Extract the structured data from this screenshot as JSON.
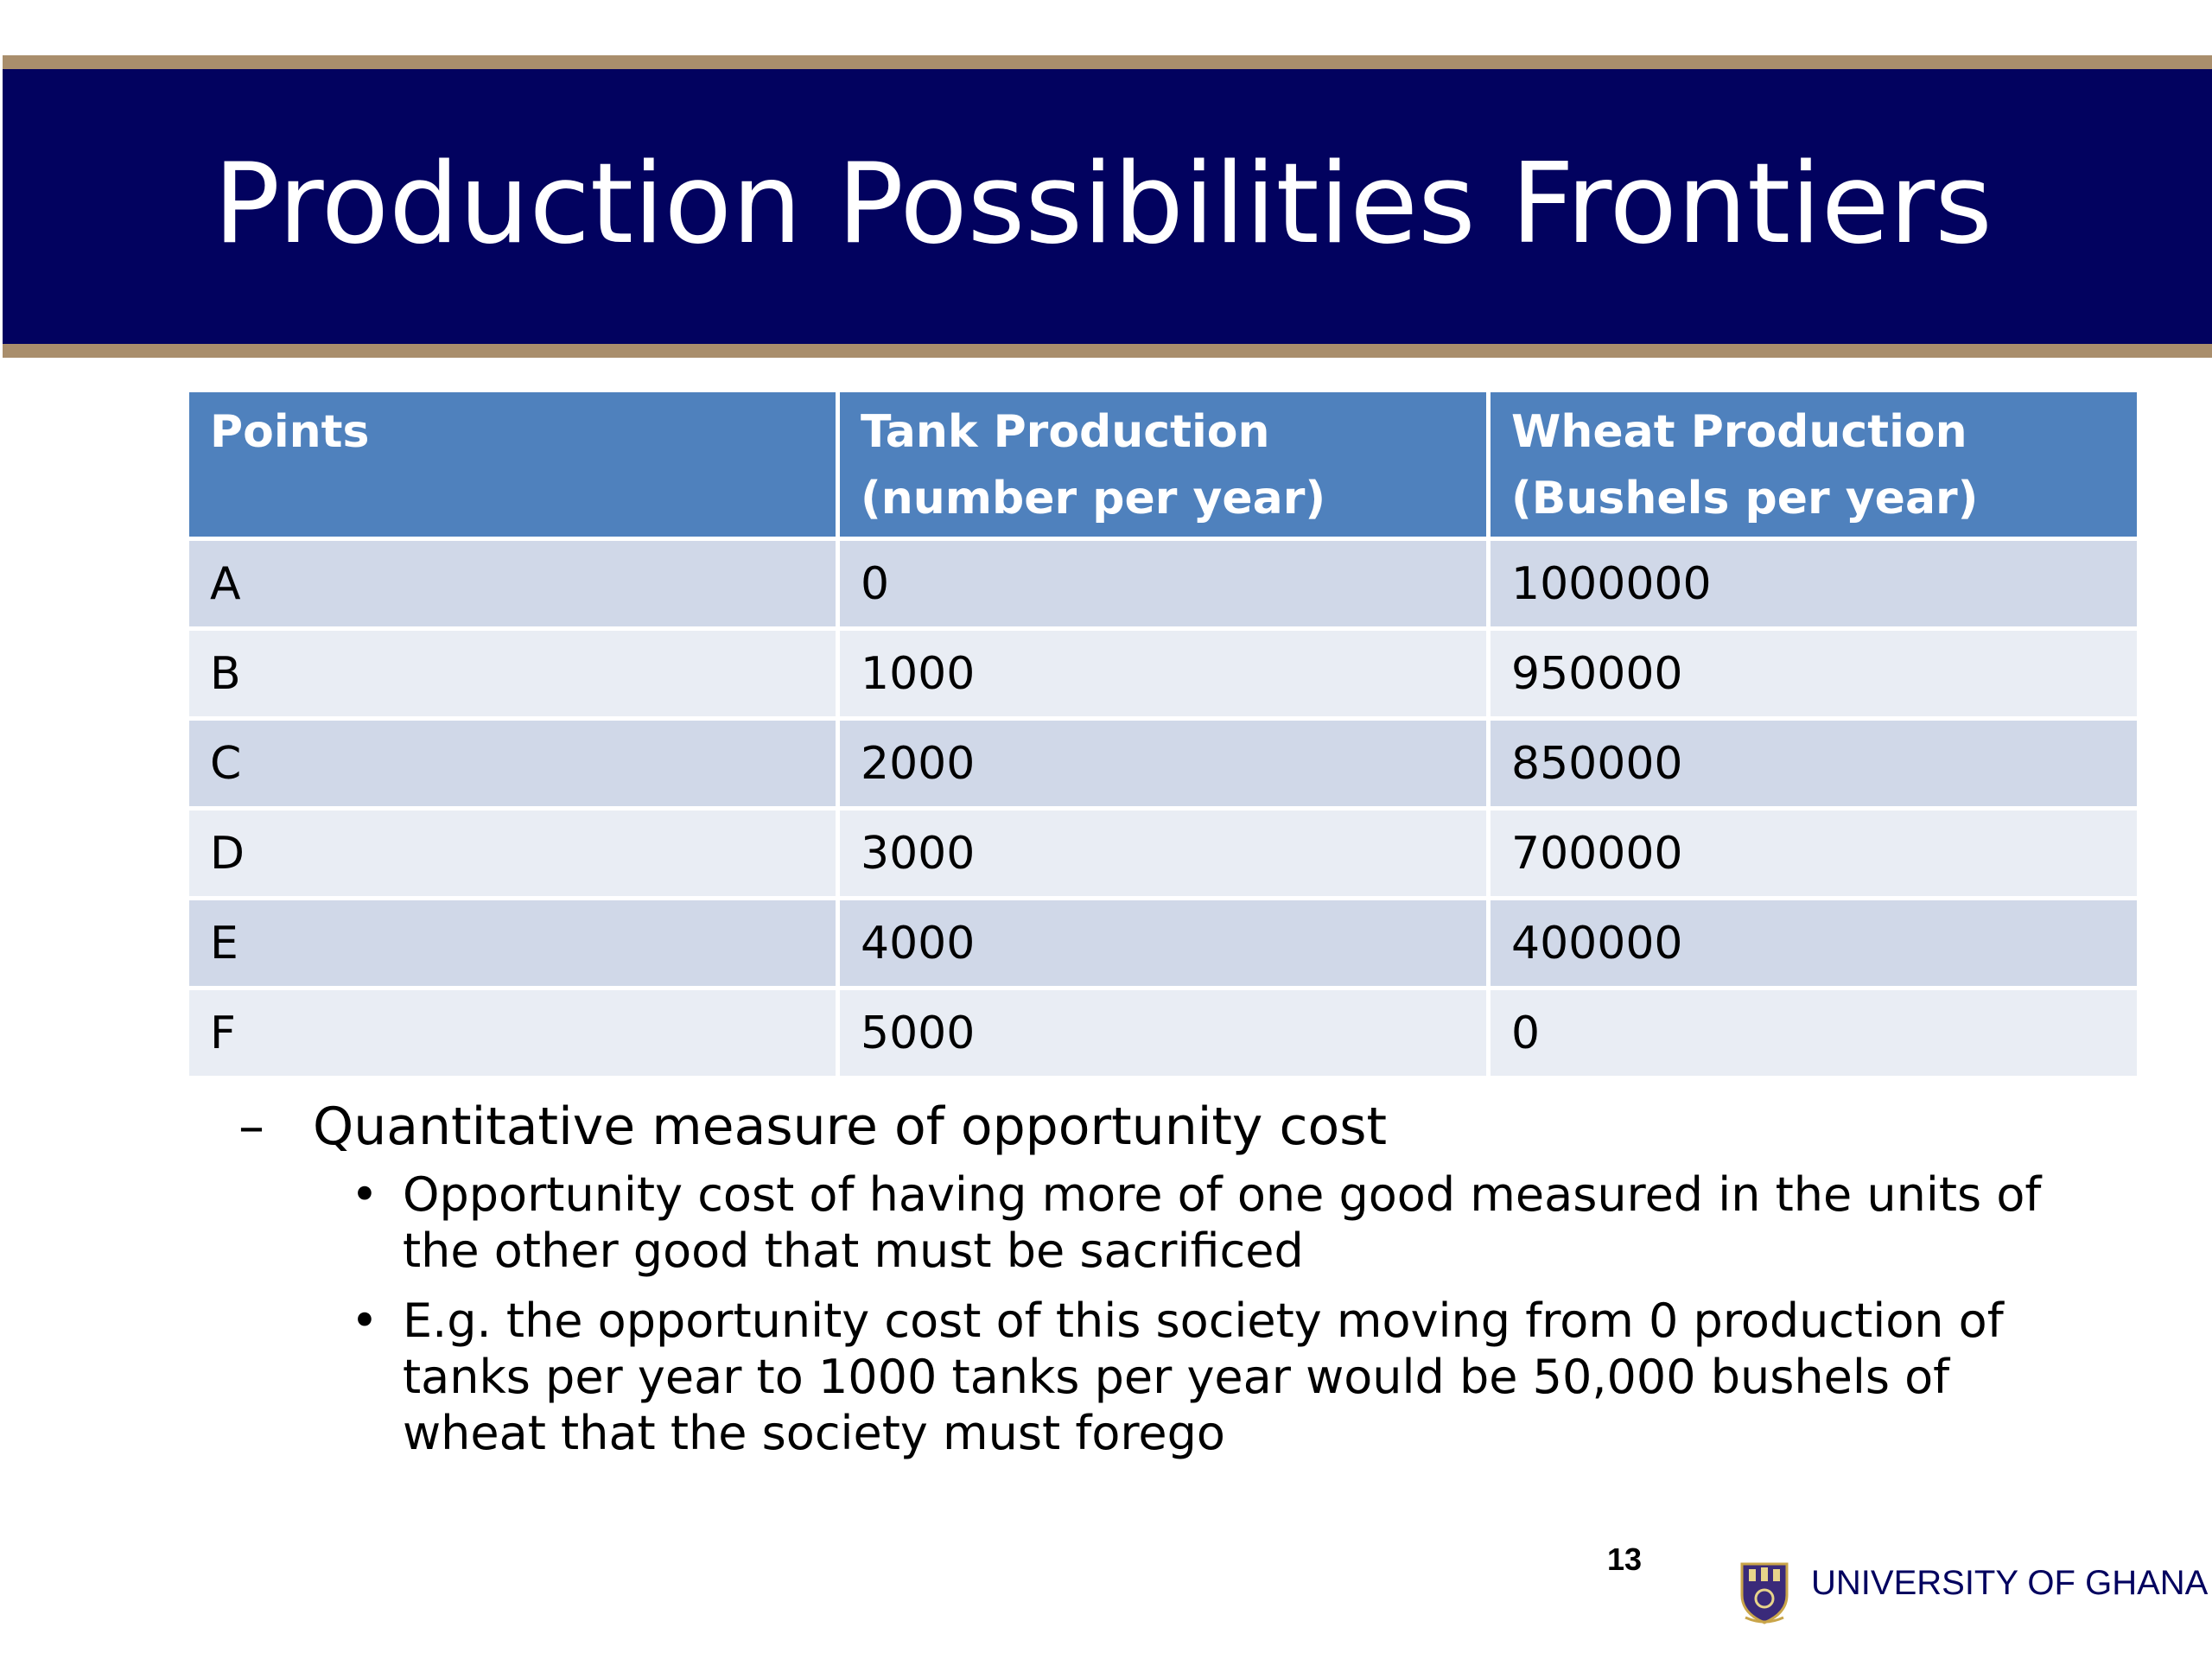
{
  "slide": {
    "title": "Production Possibilities Frontiers",
    "page_number": "13",
    "institution": "UNIVERSITY OF GHANA"
  },
  "table": {
    "headers": [
      "Points",
      "Tank Production (number per year)",
      "Wheat Production (Bushels per year)"
    ],
    "rows": [
      [
        "A",
        "0",
        "1000000"
      ],
      [
        "B",
        "1000",
        "950000"
      ],
      [
        "C",
        "2000",
        "850000"
      ],
      [
        "D",
        "3000",
        "700000"
      ],
      [
        "E",
        "4000",
        "400000"
      ],
      [
        "F",
        "5000",
        "0"
      ]
    ]
  },
  "bullets": {
    "level1": {
      "marker": "–",
      "text": "Quantitative measure of opportunity cost"
    },
    "level2": [
      {
        "marker": "•",
        "text": "Opportunity cost of having more of one good measured in the units of the other good that must be sacrificed"
      },
      {
        "marker": "•",
        "text": "E.g. the opportunity cost of this society moving from 0 production of tanks per year to 1000 tanks per year would be 50,000 bushels of wheat that the society must forego"
      }
    ]
  },
  "colors": {
    "title_band": "#02025f",
    "band_border": "#a98e6c",
    "table_header": "#4f81bd",
    "row_odd": "#d0d8e8",
    "row_even": "#e9edf4"
  },
  "icons": {
    "logo": "university-crest-icon"
  }
}
